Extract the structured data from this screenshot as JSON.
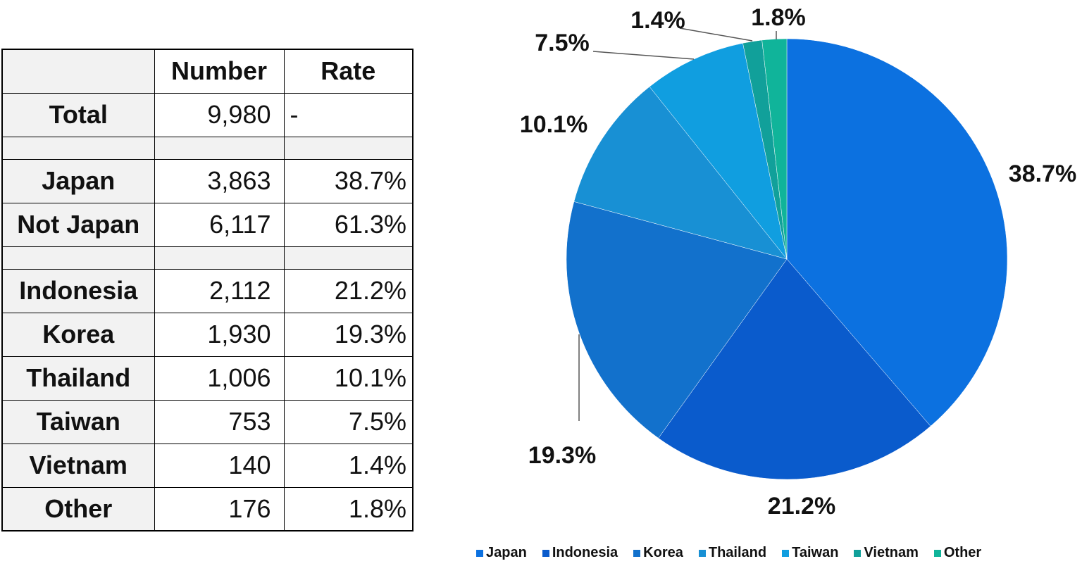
{
  "table": {
    "headers": [
      "",
      "Number",
      "Rate"
    ],
    "rows": [
      {
        "label": "Total",
        "number": "9,980",
        "rate": "-"
      },
      {
        "spacer": true
      },
      {
        "label": "Japan",
        "number": "3,863",
        "rate": "38.7%"
      },
      {
        "label": "Not Japan",
        "number": "6,117",
        "rate": "61.3%"
      },
      {
        "spacer": true
      },
      {
        "label": "Indonesia",
        "number": "2,112",
        "rate": "21.2%"
      },
      {
        "label": "Korea",
        "number": "1,930",
        "rate": "19.3%"
      },
      {
        "label": "Thailand",
        "number": "1,006",
        "rate": "10.1%"
      },
      {
        "label": "Taiwan",
        "number": "753",
        "rate": "7.5%"
      },
      {
        "label": "Vietnam",
        "number": "140",
        "rate": "1.4%"
      },
      {
        "label": "Other",
        "number": "176",
        "rate": "1.8%"
      }
    ]
  },
  "chart_data": {
    "type": "pie",
    "categories": [
      "Japan",
      "Indonesia",
      "Korea",
      "Thailand",
      "Taiwan",
      "Vietnam",
      "Other"
    ],
    "values": [
      38.7,
      21.2,
      19.3,
      10.1,
      7.5,
      1.4,
      1.8
    ],
    "labels": [
      "38.7%",
      "21.2%",
      "19.3%",
      "10.1%",
      "7.5%",
      "1.4%",
      "1.8%"
    ],
    "colors": [
      "#0c71e0",
      "#0a5bcc",
      "#1271cc",
      "#1890d4",
      "#109ee0",
      "#11a09a",
      "#10b49a"
    ],
    "legend_placement": "bottom"
  }
}
